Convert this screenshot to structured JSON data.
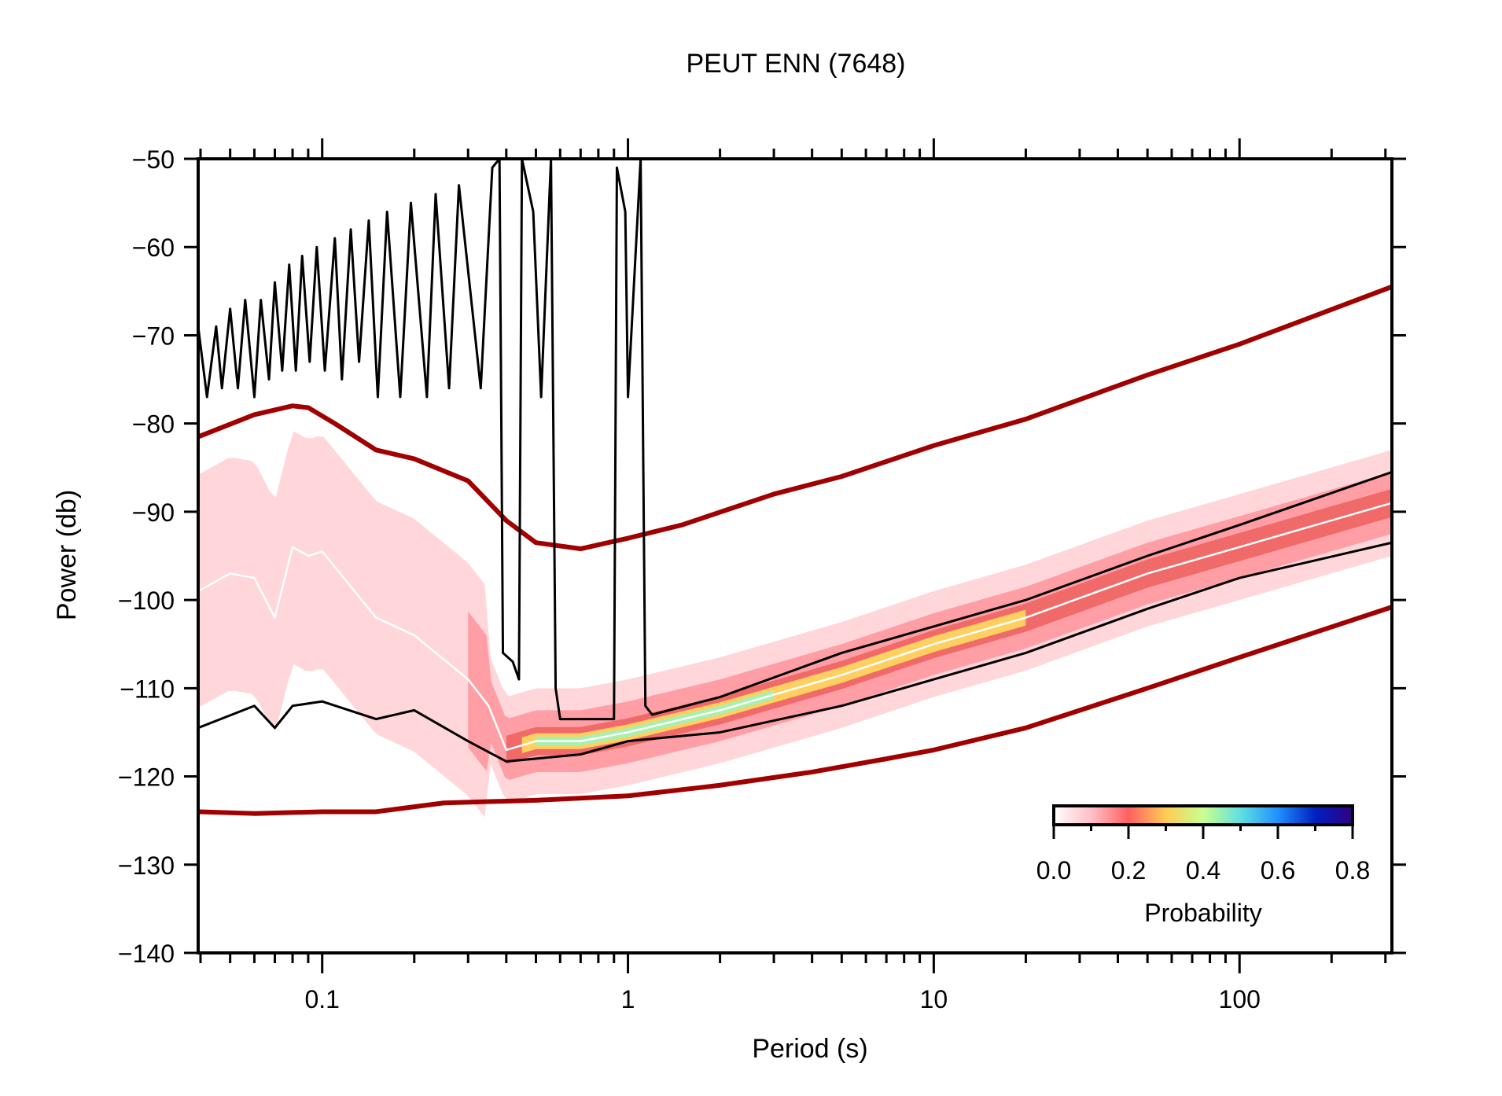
{
  "chart_data": {
    "type": "line",
    "title": "PEUT ENN (7648)",
    "xlabel": "Period (s)",
    "ylabel": "Power (db)",
    "xscale": "log",
    "xlim": [
      0.0393,
      315
    ],
    "ylim": [
      -140,
      -50
    ],
    "x_ticks": [
      0.1,
      1,
      10,
      100
    ],
    "x_tick_labels": [
      "0.1",
      "1",
      "10",
      "100"
    ],
    "y_ticks": [
      -50,
      -60,
      -70,
      -80,
      -90,
      -100,
      -110,
      -120,
      -130,
      -140
    ],
    "y_tick_labels": [
      "−50",
      "−60",
      "−70",
      "−80",
      "−90",
      "−100",
      "−110",
      "−120",
      "−130",
      "−140"
    ],
    "grid": false,
    "colors": {
      "noise_models": "#a00000",
      "percentiles": "#000000",
      "mode": "#ffffff"
    },
    "series": [
      {
        "role": "high-noise-model",
        "color": "#a00000",
        "x": [
          0.0393,
          0.06,
          0.08,
          0.09,
          0.11,
          0.15,
          0.2,
          0.3,
          0.4,
          0.5,
          0.7,
          1,
          1.5,
          3,
          5,
          10,
          20,
          50,
          100,
          315
        ],
        "y": [
          -81.5,
          -79,
          -78,
          -78.2,
          -80,
          -83,
          -84,
          -86.5,
          -91,
          -93.5,
          -94.2,
          -93,
          -91.5,
          -88,
          -86,
          -82.5,
          -79.5,
          -74.5,
          -71,
          -64.5
        ]
      },
      {
        "role": "low-noise-model",
        "color": "#a00000",
        "x": [
          0.0393,
          0.06,
          0.1,
          0.15,
          0.25,
          0.5,
          1,
          2,
          4,
          7,
          10,
          20,
          50,
          100,
          315
        ],
        "y": [
          -124,
          -124.2,
          -124,
          -124,
          -123,
          -122.7,
          -122.2,
          -121,
          -119.5,
          -118,
          -117,
          -114.5,
          -110,
          -106.5,
          -100.8
        ]
      },
      {
        "role": "mode",
        "color": "#ffffff",
        "x": [
          0.0393,
          0.05,
          0.06,
          0.07,
          0.08,
          0.09,
          0.1,
          0.15,
          0.2,
          0.3,
          0.35,
          0.4,
          0.5,
          0.7,
          1,
          2,
          5,
          10,
          20,
          50,
          100,
          315
        ],
        "y": [
          -99,
          -97,
          -97.5,
          -102,
          -94,
          -95,
          -94.5,
          -102,
          -104,
          -109,
          -112,
          -117,
          -116,
          -116,
          -115,
          -112.5,
          -108.5,
          -105,
          -102,
          -97,
          -94,
          -89
        ]
      },
      {
        "role": "upper-percentile",
        "color": "#000000",
        "x": [
          0.0393,
          0.042,
          0.045,
          0.047,
          0.05,
          0.053,
          0.056,
          0.06,
          0.063,
          0.067,
          0.07,
          0.074,
          0.078,
          0.082,
          0.086,
          0.091,
          0.096,
          0.102,
          0.11,
          0.116,
          0.124,
          0.132,
          0.142,
          0.152,
          0.163,
          0.18,
          0.195,
          0.22,
          0.235,
          0.26,
          0.28,
          0.33,
          0.36,
          0.38,
          0.39,
          0.42,
          0.44,
          0.45,
          0.49,
          0.52,
          0.56,
          0.58,
          0.6,
          0.9,
          0.92,
          0.98,
          1.0,
          1.1,
          1.14,
          1.2,
          2,
          5,
          10,
          20,
          50,
          100,
          315
        ],
        "y": [
          -69,
          -77,
          -69,
          -76,
          -67,
          -76,
          -66,
          -77,
          -66,
          -75,
          -64,
          -74,
          -62,
          -74,
          -61,
          -73,
          -60,
          -74,
          -59,
          -75,
          -58,
          -73,
          -57,
          -77,
          -56,
          -77,
          -55,
          -77,
          -54,
          -76,
          -53,
          -76,
          -51,
          -50,
          -106,
          -107,
          -109,
          -50,
          -56,
          -77,
          -50,
          -110,
          -113.5,
          -113.5,
          -51,
          -56,
          -77,
          -50,
          -112,
          -113,
          -111,
          -106,
          -103,
          -100,
          -95,
          -91.5,
          -85.5
        ]
      },
      {
        "role": "lower-percentile",
        "color": "#000000",
        "x": [
          0.0393,
          0.06,
          0.07,
          0.08,
          0.1,
          0.15,
          0.2,
          0.3,
          0.4,
          0.7,
          1,
          2,
          5,
          10,
          20,
          50,
          100,
          315
        ],
        "y": [
          -114.5,
          -112,
          -114.5,
          -112,
          -111.5,
          -113.5,
          -112.5,
          -116,
          -118.3,
          -117.5,
          -116,
          -115,
          -112,
          -109,
          -106,
          -101,
          -97.5,
          -93.5
        ]
      }
    ],
    "colorbar": {
      "label": "Probability",
      "ticks": [
        "0.0",
        "0.2",
        "0.4",
        "0.6",
        "0.8"
      ],
      "range": [
        0,
        0.8
      ],
      "colors": [
        "#ffffff",
        "#ffc0c8",
        "#ff6060",
        "#ffcc55",
        "#c8ff90",
        "#60e0e0",
        "#2090ff",
        "#0020c0",
        "#300080"
      ]
    }
  }
}
